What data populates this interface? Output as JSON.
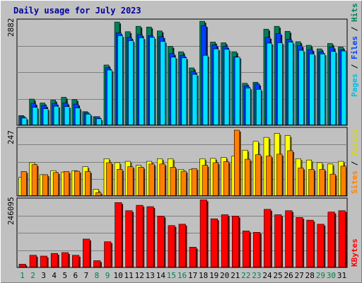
{
  "title": "Daily usage for July 2023",
  "colors": {
    "background": "#c0c0c0",
    "plot": "#c0c0c0",
    "title": "#0000a0",
    "hits": "#00805c",
    "files": "#0040ff",
    "pages": "#00e0ff",
    "visits": "#ffff00",
    "sites": "#ff8000",
    "kbytes": "#ff0000",
    "weekend_day": "#00804c",
    "weekday": "#000000"
  },
  "days": [
    "1",
    "2",
    "3",
    "4",
    "5",
    "6",
    "7",
    "8",
    "9",
    "10",
    "11",
    "12",
    "13",
    "14",
    "15",
    "16",
    "17",
    "18",
    "19",
    "20",
    "21",
    "22",
    "23",
    "24",
    "25",
    "26",
    "27",
    "28",
    "29",
    "30",
    "31"
  ],
  "weekend_days": [
    "1",
    "2",
    "8",
    "9",
    "15",
    "16",
    "22",
    "23",
    "29",
    "30"
  ],
  "chart_data": [
    {
      "type": "bar",
      "name": "hits-files-pages",
      "y_axis_label": "2882",
      "ylim": [
        0,
        2882
      ],
      "legend": [
        "Pages",
        "Files",
        "Hits"
      ],
      "series": [
        {
          "name": "Hits",
          "values": [
            270,
            730,
            620,
            700,
            780,
            720,
            380,
            240,
            1680,
            2880,
            2610,
            2760,
            2740,
            2630,
            2200,
            2050,
            1600,
            2900,
            2320,
            2300,
            2050,
            1170,
            1200,
            2680,
            2760,
            2620,
            2330,
            2230,
            2130,
            2280,
            2180
          ]
        },
        {
          "name": "Files",
          "values": [
            240,
            610,
            550,
            610,
            620,
            590,
            350,
            240,
            1600,
            2580,
            2450,
            2530,
            2500,
            2470,
            2000,
            1950,
            1500,
            2780,
            2240,
            2200,
            1910,
            1100,
            1150,
            2450,
            2560,
            2400,
            2220,
            2110,
            2050,
            2180,
            2100
          ]
        },
        {
          "name": "Pages",
          "values": [
            200,
            500,
            460,
            530,
            520,
            480,
            310,
            180,
            1540,
            2500,
            2360,
            2440,
            2450,
            2340,
            1900,
            1880,
            1420,
            1950,
            2130,
            2120,
            1900,
            1040,
            1000,
            2290,
            2300,
            2320,
            2090,
            1990,
            1990,
            2060,
            2070
          ]
        }
      ]
    },
    {
      "type": "bar",
      "name": "visits-sites",
      "y_axis_label": "247",
      "ylim": [
        0,
        247
      ],
      "legend": [
        "Sites",
        "Visits"
      ],
      "series": [
        {
          "name": "Visits",
          "values": [
            70,
            125,
            80,
            95,
            90,
            95,
            110,
            25,
            140,
            125,
            130,
            115,
            130,
            140,
            140,
            100,
            100,
            140,
            141,
            145,
            150,
            172,
            205,
            220,
            235,
            227,
            140,
            135,
            125,
            120,
            130
          ]
        },
        {
          "name": "Sites",
          "values": [
            92,
            118,
            80,
            88,
            92,
            93,
            92,
            13,
            125,
            100,
            110,
            108,
            120,
            120,
            108,
            93,
            103,
            115,
            125,
            129,
            247,
            138,
            155,
            150,
            157,
            170,
            105,
            100,
            100,
            82,
            112
          ]
        }
      ]
    },
    {
      "type": "bar",
      "name": "kbytes",
      "y_axis_label": "246095",
      "ylim": [
        0,
        246095
      ],
      "legend": [
        "KBytes"
      ],
      "series": [
        {
          "name": "KBytes",
          "values": [
            12000,
            45000,
            42000,
            52000,
            55000,
            45000,
            105000,
            25000,
            95000,
            240000,
            210000,
            230000,
            225000,
            190000,
            155000,
            160000,
            75000,
            250000,
            180000,
            195000,
            190000,
            135000,
            130000,
            215000,
            195000,
            210000,
            185000,
            175000,
            160000,
            205000,
            210000
          ]
        }
      ]
    }
  ]
}
